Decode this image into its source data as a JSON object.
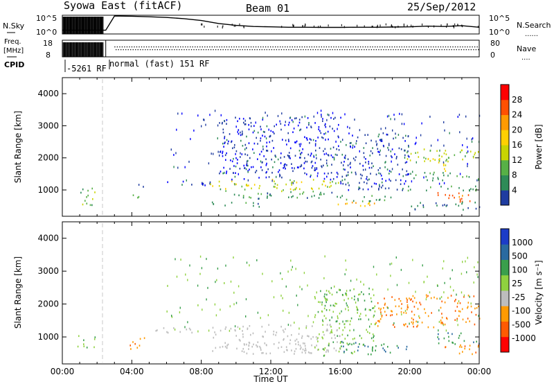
{
  "header": {
    "station": "Syowa East (fitACF)",
    "beam": "Beam 01",
    "date": "25/Sep/2012"
  },
  "panel_labels": {
    "nsky": "N.Sky",
    "nsearch": "N.Search",
    "nsearch_dots": "......",
    "freq_line1": "Freq.",
    "freq_line2": "[MHz]",
    "nave": "Nave",
    "nave_dots": "....",
    "cpid": "CPID",
    "cpid_first": "-5261 RF",
    "cpid_second": "normal (fast) 151 RF"
  },
  "colors": {
    "power": [
      "#0000ff",
      "#1f3ca0",
      "#2e8b57",
      "#57b046",
      "#c8d400",
      "#ffd000",
      "#ff9a00",
      "#ff5000",
      "#ff0000"
    ],
    "velocity": [
      "#ff0000",
      "#ff5a00",
      "#ff9a00",
      "#bdbdbd",
      "#bdbdbd",
      "#8fd13f",
      "#3a9f4c",
      "#2a6aa0",
      "#1c3cc8"
    ],
    "ground_scatter": "#c0c0c0"
  },
  "chart_data": [
    {
      "type": "line",
      "name": "noise-sky-search",
      "y_tick_labels": [
        "10^5",
        "10^0"
      ],
      "right_tick_labels": [
        "10^5",
        "10^0"
      ],
      "x": [
        0,
        1,
        2,
        2.5,
        3,
        4,
        5,
        6,
        7,
        8,
        9,
        10,
        11,
        12,
        13,
        14,
        15,
        16,
        17,
        18,
        19,
        20,
        21,
        22,
        23,
        24
      ],
      "sky": [
        1.0,
        1.0,
        1.0,
        1.0,
        4.8,
        4.75,
        4.6,
        4.4,
        4.1,
        3.6,
        2.8,
        2.3,
        2.0,
        1.9,
        1.8,
        1.8,
        1.75,
        1.75,
        1.8,
        1.8,
        1.85,
        1.9,
        2.1,
        2.0,
        2.2,
        1.8
      ]
    },
    {
      "type": "scatter",
      "name": "frequency-nave",
      "left_ticks": [
        18,
        8
      ],
      "right_ticks": [
        80,
        0
      ],
      "freq_mhz": 12.5,
      "nave_typical": 68
    },
    {
      "type": "heatmap",
      "name": "power",
      "xlabel": "",
      "ylabel": "Slant Range [km]",
      "xlim": [
        0,
        24
      ],
      "ylim": [
        180,
        4500
      ],
      "y_ticks": [
        1000,
        2000,
        3000,
        4000
      ],
      "colorbar": {
        "label": "Power [dB]",
        "ticks": [
          4,
          8,
          12,
          16,
          20,
          24,
          28
        ],
        "range": [
          0,
          32
        ]
      },
      "regions": [
        {
          "t0": 0.8,
          "t1": 1.9,
          "r0": 550,
          "r1": 1100,
          "level": 14
        },
        {
          "t0": 3.8,
          "t1": 4.4,
          "r0": 700,
          "r1": 900,
          "level": 12
        },
        {
          "t0": 4.3,
          "t1": 5.0,
          "r0": 1100,
          "r1": 1350,
          "level": 6
        },
        {
          "t0": 5.0,
          "t1": 8.5,
          "r0": 1150,
          "r1": 1300,
          "level": 5
        },
        {
          "t0": 8.5,
          "t1": 16.0,
          "r0": 1050,
          "r1": 1350,
          "level": 18
        },
        {
          "t0": 9.0,
          "t1": 14.5,
          "r0": 950,
          "r1": 1050,
          "level": 14
        },
        {
          "t0": 9.5,
          "t1": 16.5,
          "r0": 750,
          "r1": 950,
          "level": 10
        },
        {
          "t0": 8.5,
          "t1": 11.5,
          "r0": 500,
          "r1": 650,
          "level": 10
        },
        {
          "t0": 15.0,
          "t1": 18.0,
          "r0": 500,
          "r1": 650,
          "level": 24
        },
        {
          "t0": 16.0,
          "t1": 19.0,
          "r0": 650,
          "r1": 850,
          "level": 12
        },
        {
          "t0": 9.0,
          "t1": 16.0,
          "r0": 1350,
          "r1": 3300,
          "level": 5
        },
        {
          "t0": 16.0,
          "t1": 20.0,
          "r0": 1000,
          "r1": 2800,
          "level": 6
        },
        {
          "t0": 19.5,
          "t1": 24.0,
          "r0": 1900,
          "r1": 2300,
          "level": 16
        },
        {
          "t0": 21.0,
          "t1": 22.5,
          "r0": 1600,
          "r1": 2000,
          "level": 20
        },
        {
          "t0": 20.0,
          "t1": 24.0,
          "r0": 1300,
          "r1": 1600,
          "level": 12
        },
        {
          "t0": 19.5,
          "t1": 24.0,
          "r0": 1000,
          "r1": 1150,
          "level": 12
        },
        {
          "t0": 21.5,
          "t1": 24.0,
          "r0": 650,
          "r1": 950,
          "level": 30
        },
        {
          "t0": 20.0,
          "t1": 24.0,
          "r0": 400,
          "r1": 650,
          "level": 8
        }
      ]
    },
    {
      "type": "heatmap",
      "name": "velocity",
      "xlabel": "Time UT",
      "ylabel": "Slant Range [km]",
      "xlim": [
        0,
        24
      ],
      "ylim": [
        180,
        4500
      ],
      "x_tick_labels": [
        "00:00",
        "04:00",
        "08:00",
        "12:00",
        "16:00",
        "20:00",
        "00:00"
      ],
      "y_ticks": [
        1000,
        2000,
        3000,
        4000
      ],
      "colorbar": {
        "label": "Velocity [m s⁻¹]",
        "ticks": [
          "1000",
          "500",
          "100",
          "25",
          "-25",
          "-100",
          "-500",
          "-1000"
        ]
      },
      "regions": [
        {
          "t0": 0.8,
          "t1": 1.9,
          "r0": 550,
          "r1": 1100,
          "vel": "green"
        },
        {
          "t0": 3.8,
          "t1": 4.8,
          "r0": 650,
          "r1": 1000,
          "vel": "orange"
        },
        {
          "t0": 5.0,
          "t1": 8.0,
          "r0": 1150,
          "r1": 1300,
          "vel": "gray"
        },
        {
          "t0": 8.5,
          "t1": 16.0,
          "r0": 500,
          "r1": 1400,
          "vel": "gray"
        },
        {
          "t0": 14.5,
          "t1": 18.0,
          "r0": 450,
          "r1": 2500,
          "vel": "green"
        },
        {
          "t0": 16.0,
          "t1": 20.0,
          "r0": 500,
          "r1": 900,
          "vel": "darkgreen"
        },
        {
          "t0": 18.0,
          "t1": 24.0,
          "r0": 1300,
          "r1": 2300,
          "vel": "orange"
        },
        {
          "t0": 21.5,
          "t1": 24.0,
          "r0": 800,
          "r1": 1150,
          "vel": "darkgreen"
        },
        {
          "t0": 22.0,
          "t1": 24.0,
          "r0": 500,
          "r1": 800,
          "vel": "orange"
        }
      ]
    }
  ]
}
